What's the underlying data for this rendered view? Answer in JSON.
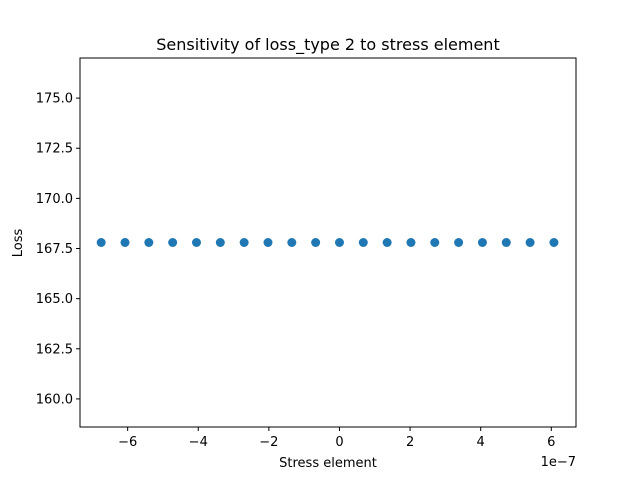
{
  "chart_data": {
    "type": "scatter",
    "title": "Sensitivity of loss_type 2 to stress element",
    "xlabel": "Stress element",
    "ylabel": "Loss",
    "x_offset_label": "1e−7",
    "x_scale": 1e-07,
    "xlim": [
      -7.35e-07,
      6.7e-07
    ],
    "ylim": [
      158.6,
      177.0
    ],
    "x_ticks": [
      -6e-07,
      -4e-07,
      -2e-07,
      0,
      2e-07,
      4e-07,
      6e-07
    ],
    "x_tick_labels": [
      "−6",
      "−4",
      "−2",
      "0",
      "2",
      "4",
      "6"
    ],
    "y_ticks": [
      160.0,
      162.5,
      165.0,
      167.5,
      170.0,
      172.5,
      175.0
    ],
    "y_tick_labels": [
      "160.0",
      "162.5",
      "165.0",
      "167.5",
      "170.0",
      "172.5",
      "175.0"
    ],
    "grid": false,
    "marker_color": "#1f77b4",
    "x": [
      -6.75e-07,
      -6.075e-07,
      -5.4e-07,
      -4.725e-07,
      -4.05e-07,
      -3.375e-07,
      -2.7e-07,
      -2.025e-07,
      -1.35e-07,
      -6.75e-08,
      0,
      6.75e-08,
      1.35e-07,
      2.025e-07,
      2.7e-07,
      3.375e-07,
      4.05e-07,
      4.725e-07,
      5.4e-07,
      6.075e-07
    ],
    "y": [
      167.8,
      167.8,
      167.8,
      167.8,
      167.8,
      167.8,
      167.8,
      167.8,
      167.8,
      167.8,
      167.8,
      167.8,
      167.8,
      167.8,
      167.8,
      167.8,
      167.8,
      167.8,
      167.8,
      167.8
    ]
  }
}
